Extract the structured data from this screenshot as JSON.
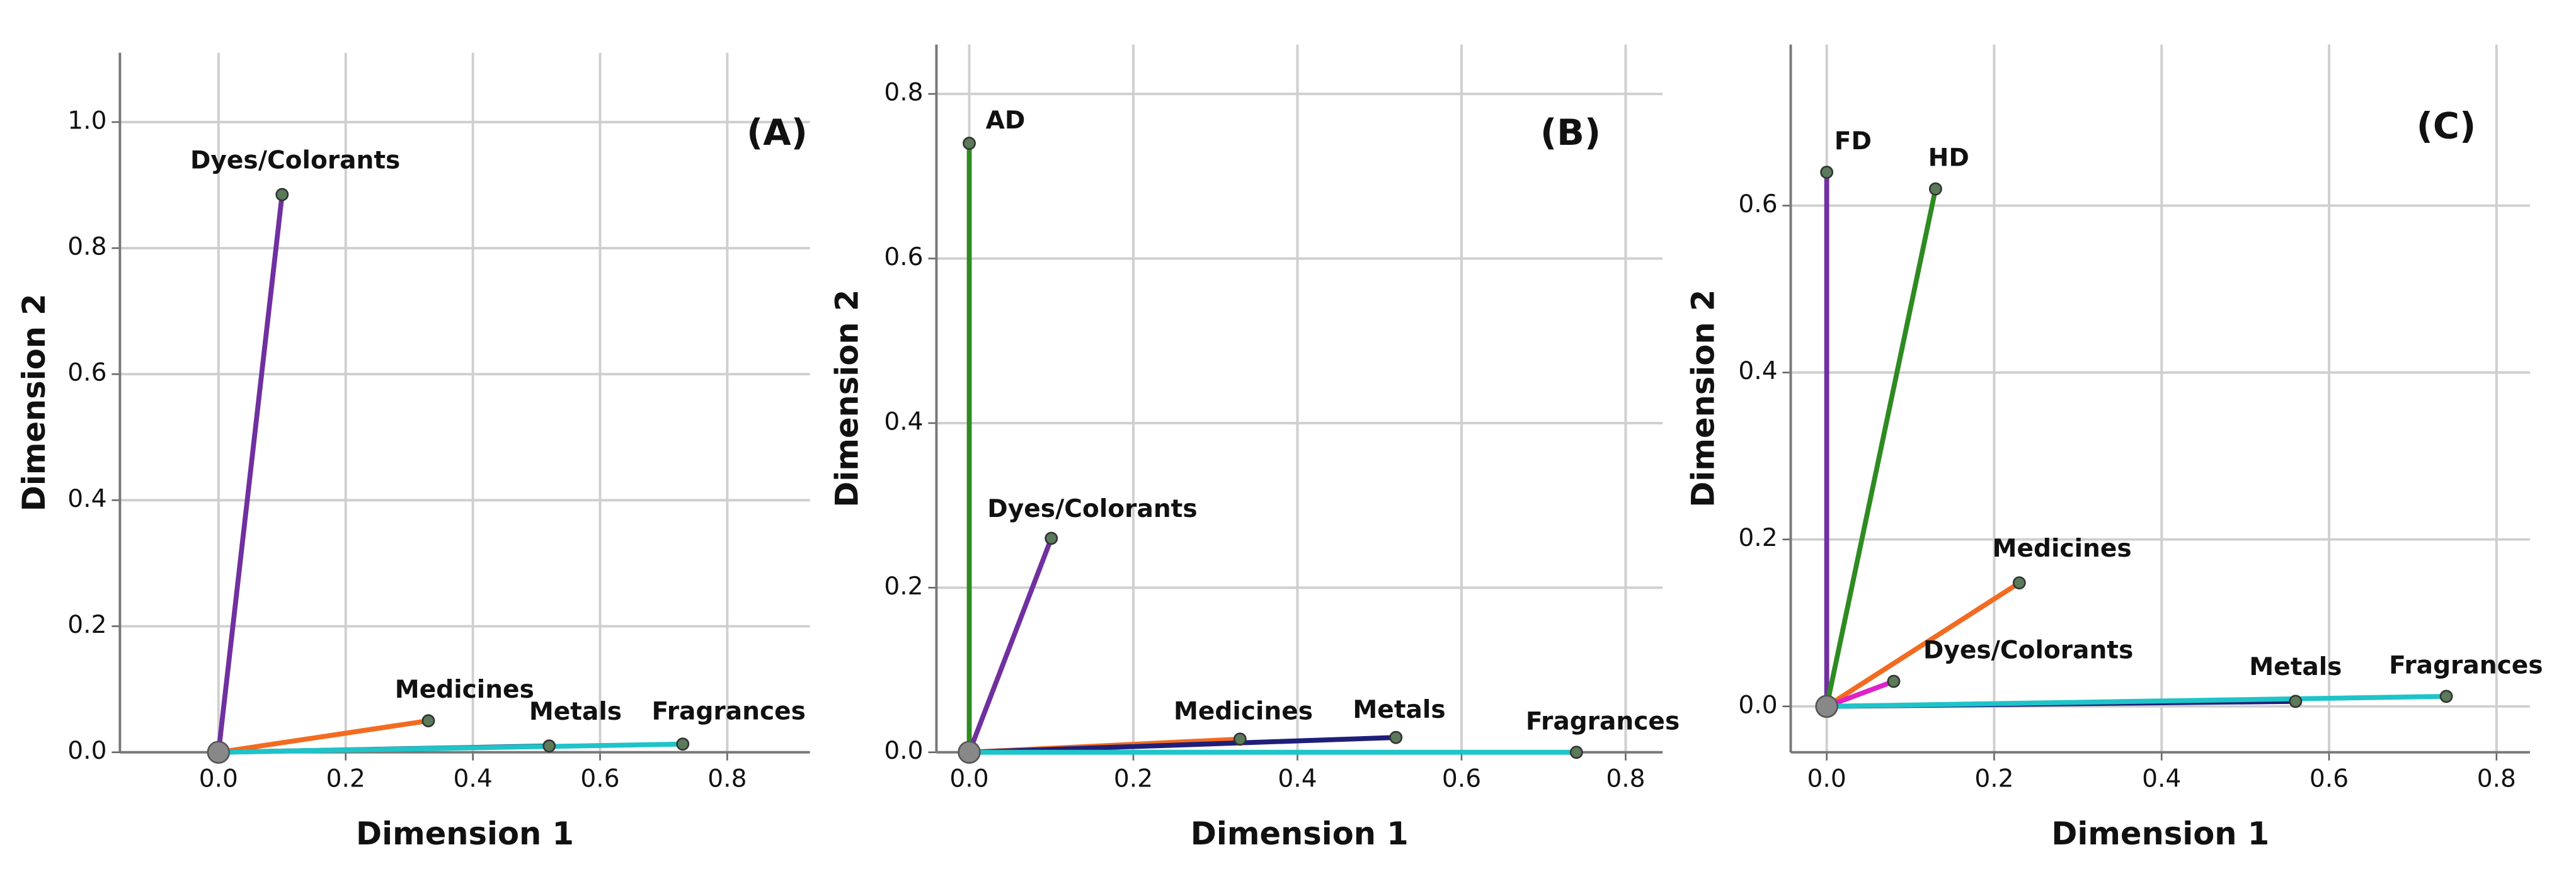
{
  "chart_data": [
    {
      "type": "vector",
      "panel_label": "(A)",
      "x_label": "Dimension 1",
      "y_label": "Dimension 2",
      "xlim": [
        -0.155,
        0.93
      ],
      "ylim": [
        0,
        1.11
      ],
      "xticks": [
        {
          "value": 0,
          "label": "0.0"
        },
        {
          "value": 0.2,
          "label": "0.2"
        },
        {
          "value": 0.4,
          "label": "0.4"
        },
        {
          "value": 0.6,
          "label": "0.6"
        },
        {
          "value": 0.8,
          "label": "0.8"
        }
      ],
      "yticks": [
        {
          "value": 0,
          "label": "0.0"
        },
        {
          "value": 0.2,
          "label": "0.2"
        },
        {
          "value": 0.4,
          "label": "0.4"
        },
        {
          "value": 0.6,
          "label": "0.6"
        },
        {
          "value": 0.8,
          "label": "0.8"
        },
        {
          "value": 1,
          "label": "1.0"
        }
      ],
      "grid": true,
      "series": [
        {
          "name": "Dyes/Colorants",
          "color": "#7030a0",
          "x": 0.1,
          "y": 0.885
        },
        {
          "name": "Medicines",
          "color": "#f26b21",
          "x": 0.33,
          "y": 0.05
        },
        {
          "name": "Metals",
          "color": "#1f4f7a",
          "x": 0.52,
          "y": 0.01
        },
        {
          "name": "Fragrances",
          "color": "#1fc4c9",
          "x": 0.73,
          "y": 0.013
        }
      ]
    },
    {
      "type": "vector",
      "panel_label": "(B)",
      "x_label": "Dimension 1",
      "y_label": "Dimension 2",
      "xlim": [
        -0.04,
        0.845
      ],
      "ylim": [
        0,
        0.86
      ],
      "xticks": [
        {
          "value": 0,
          "label": "0.0"
        },
        {
          "value": 0.2,
          "label": "0.2"
        },
        {
          "value": 0.4,
          "label": "0.4"
        },
        {
          "value": 0.6,
          "label": "0.6"
        },
        {
          "value": 0.8,
          "label": "0.8"
        }
      ],
      "yticks": [
        {
          "value": 0,
          "label": "0.0"
        },
        {
          "value": 0.2,
          "label": "0.2"
        },
        {
          "value": 0.4,
          "label": "0.4"
        },
        {
          "value": 0.6,
          "label": "0.6"
        },
        {
          "value": 0.8,
          "label": "0.8"
        }
      ],
      "grid": true,
      "series": [
        {
          "name": "AD",
          "color": "#2e8b22",
          "x": 0.0,
          "y": 0.74
        },
        {
          "name": "Dyes/Colorants",
          "color": "#7030a0",
          "x": 0.1,
          "y": 0.26
        },
        {
          "name": "Medicines",
          "color": "#f26b21",
          "x": 0.33,
          "y": 0.016
        },
        {
          "name": "Metals",
          "color": "#1f1f7a",
          "x": 0.52,
          "y": 0.018
        },
        {
          "name": "Fragrances",
          "color": "#1fc4c9",
          "x": 0.74,
          "y": 0.0
        }
      ]
    },
    {
      "type": "vector",
      "panel_label": "(C)",
      "x_label": "Dimension 1",
      "y_label": "Dimension 2",
      "xlim": [
        -0.043,
        0.84
      ],
      "ylim": [
        -0.055,
        0.793
      ],
      "xticks": [
        {
          "value": 0,
          "label": "0.0"
        },
        {
          "value": 0.2,
          "label": "0.2"
        },
        {
          "value": 0.4,
          "label": "0.4"
        },
        {
          "value": 0.6,
          "label": "0.6"
        },
        {
          "value": 0.8,
          "label": "0.8"
        }
      ],
      "yticks": [
        {
          "value": 0,
          "label": "0.0"
        },
        {
          "value": 0.2,
          "label": "0.2"
        },
        {
          "value": 0.4,
          "label": "0.4"
        },
        {
          "value": 0.6,
          "label": "0.6"
        }
      ],
      "grid": true,
      "series": [
        {
          "name": "FD",
          "color": "#7030a0",
          "x": 0.0,
          "y": 0.64
        },
        {
          "name": "HD",
          "color": "#2e8b22",
          "x": 0.13,
          "y": 0.62
        },
        {
          "name": "Medicines",
          "color": "#f26b21",
          "x": 0.23,
          "y": 0.148
        },
        {
          "name": "Dyes/Colorants",
          "color": "#e020c8",
          "x": 0.08,
          "y": 0.03
        },
        {
          "name": "Metals",
          "color": "#1f1f7a",
          "x": 0.56,
          "y": 0.006
        },
        {
          "name": "Fragrances",
          "color": "#1fc4c9",
          "x": 0.74,
          "y": 0.012
        }
      ]
    }
  ]
}
